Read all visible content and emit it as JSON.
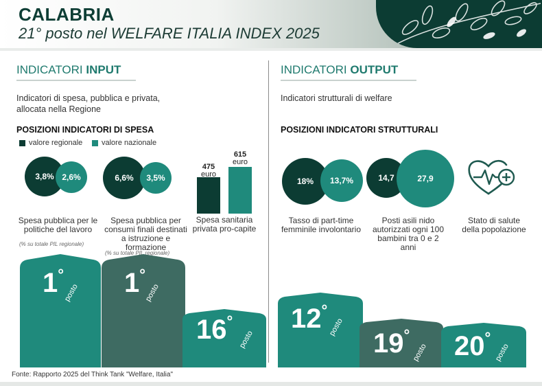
{
  "header": {
    "title": "CALABRIA",
    "subtitle": "21° posto nel WELFARE ITALIA INDEX 2025"
  },
  "input": {
    "heading_prefix": "INDICATORI ",
    "heading_bold": "INPUT",
    "description": "Indicatori di spesa, pubblica e privata, allocata nella Regione",
    "positions_title": "POSIZIONI INDICATORI DI SPESA",
    "legend_regional": "valore regionale",
    "legend_national": "valore nazionale",
    "ind1": {
      "regional": "3,8%",
      "national": "2,6%",
      "caption": "Spesa pubblica per le politiche del lavoro",
      "note": "(% su totale PIL regionale)"
    },
    "ind2": {
      "regional": "6,6%",
      "national": "3,5%",
      "caption": "Spesa pubblica per consumi finali destinati a istruzione e formazione",
      "note": "(% su totale PIL regionale)"
    },
    "ind3": {
      "regional_value": "475",
      "national_value": "615",
      "unit": "euro",
      "caption": "Spesa sanitaria privata pro-capite"
    }
  },
  "output": {
    "heading_prefix": "INDICATORI ",
    "heading_bold": "OUTPUT",
    "description": "Indicatori strutturali di welfare",
    "positions_title": "POSIZIONI INDICATORI STRUTTURALI",
    "ind1": {
      "regional": "18%",
      "national": "13,7%",
      "caption": "Tasso di part-time femminile involontario"
    },
    "ind2": {
      "regional": "14,7",
      "national": "27,9",
      "caption": "Posti asili nido autorizzati ogni 100 bambini tra 0 e 2 anni"
    },
    "ind3": {
      "caption": "Stato di salute della popolazione",
      "icon": "heart-pulse-icon"
    }
  },
  "ranks": {
    "posto_label": "posto",
    "input": [
      "1",
      "1",
      "16"
    ],
    "output": [
      "12",
      "19",
      "20"
    ]
  },
  "chart_data": {
    "type": "bar",
    "title": "Spesa sanitaria privata pro-capite",
    "categories": [
      "valore regionale",
      "valore nazionale"
    ],
    "values": [
      475,
      615
    ],
    "ylabel": "euro",
    "ylim": [
      0,
      615
    ]
  },
  "footer": {
    "source": "Fonte: Rapporto 2025 del Think Tank \"Welfare, Italia\""
  },
  "colors": {
    "dark": "#0c3c33",
    "teal": "#1f8a7c",
    "rank_teal": "#1f8a7c",
    "rank_slate": "#3e6b62"
  }
}
